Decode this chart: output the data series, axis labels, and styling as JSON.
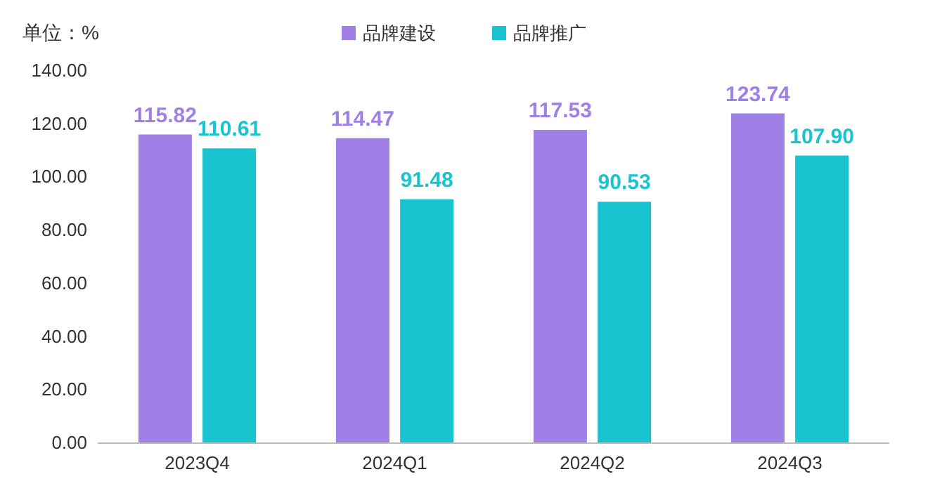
{
  "chart_data": {
    "type": "bar",
    "ylabel": "单位：%",
    "categories": [
      "2023Q4",
      "2024Q1",
      "2024Q2",
      "2024Q3"
    ],
    "series": [
      {
        "name": "品牌建设",
        "color": "#a07fe6",
        "values": [
          115.82,
          114.47,
          117.53,
          123.74
        ]
      },
      {
        "name": "品牌推广",
        "color": "#19c3cf",
        "values": [
          110.61,
          91.48,
          90.53,
          107.9
        ]
      }
    ],
    "value_labels": [
      [
        "115.82",
        "114.47",
        "117.53",
        "123.74"
      ],
      [
        "110.61",
        "91.48",
        "90.53",
        "107.90"
      ]
    ],
    "ylim": [
      0,
      140
    ],
    "yticks": [
      {
        "value": 0,
        "label": "0.00"
      },
      {
        "value": 20,
        "label": "20.00"
      },
      {
        "value": 40,
        "label": "40.00"
      },
      {
        "value": 60,
        "label": "60.00"
      },
      {
        "value": 80,
        "label": "80.00"
      },
      {
        "value": 100,
        "label": "100.00"
      },
      {
        "value": 120,
        "label": "120.00"
      },
      {
        "value": 140,
        "label": "140.00"
      }
    ],
    "grid": false,
    "legend": "top"
  }
}
